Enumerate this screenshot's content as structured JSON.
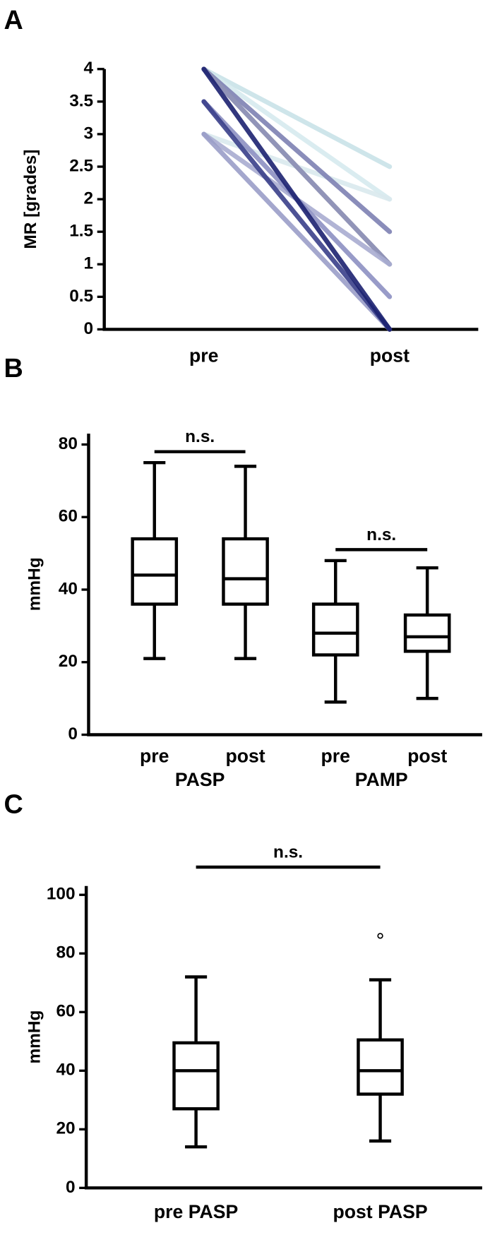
{
  "chart_data": [
    {
      "type": "line",
      "label": "A",
      "ylabel": "MR [grades]",
      "categories": [
        "pre",
        "post"
      ],
      "ylim": [
        0,
        4
      ],
      "yticks": [
        0,
        0.5,
        1,
        1.5,
        2,
        2.5,
        3,
        3.5,
        4
      ],
      "series": [
        {
          "color": "#c9e2e8",
          "values": [
            4,
            2.5
          ]
        },
        {
          "color": "#d6eaee",
          "values": [
            4,
            2
          ]
        },
        {
          "color": "#d9e9ed",
          "values": [
            3,
            2
          ]
        },
        {
          "color": "#7d81b3",
          "values": [
            4,
            1.5
          ]
        },
        {
          "color": "#9a9a9a",
          "values": [
            4,
            1
          ]
        },
        {
          "color": "#8f92ba",
          "values": [
            4,
            1
          ]
        },
        {
          "color": "#a9acd0",
          "values": [
            3,
            1
          ]
        },
        {
          "color": "#8d90c2",
          "values": [
            3.5,
            0.5
          ]
        },
        {
          "color": "#9a9dc8",
          "values": [
            3,
            0
          ]
        },
        {
          "color": "#3a3f8a",
          "values": [
            3.5,
            0
          ]
        },
        {
          "color": "#1c2170",
          "values": [
            4,
            0
          ]
        }
      ]
    },
    {
      "type": "box",
      "label": "B",
      "ylabel": "mmHg",
      "categories": [
        "pre",
        "post",
        "pre",
        "post"
      ],
      "groups": [
        "PASP",
        "PAMP"
      ],
      "ylim": [
        0,
        83
      ],
      "yticks": [
        0,
        20,
        40,
        60,
        80
      ],
      "annotations": [
        "n.s.",
        "n.s."
      ],
      "boxes": [
        {
          "min": 21,
          "q1": 36,
          "median": 44,
          "q3": 54,
          "max": 75
        },
        {
          "min": 21,
          "q1": 36,
          "median": 43,
          "q3": 54,
          "max": 74
        },
        {
          "min": 9,
          "q1": 22,
          "median": 28,
          "q3": 36,
          "max": 48
        },
        {
          "min": 10,
          "q1": 23,
          "median": 27,
          "q3": 33,
          "max": 46
        }
      ]
    },
    {
      "type": "box",
      "label": "C",
      "ylabel": "mmHg",
      "categories": [
        "pre PASP",
        "post PASP"
      ],
      "ylim": [
        0,
        103
      ],
      "yticks": [
        0,
        20,
        40,
        60,
        80,
        100
      ],
      "annotations": [
        "n.s."
      ],
      "boxes": [
        {
          "min": 14,
          "q1": 27,
          "median": 40,
          "q3": 49.5,
          "max": 72
        },
        {
          "min": 16,
          "q1": 32,
          "median": 40,
          "q3": 50.5,
          "max": 71,
          "outliers": [
            86
          ]
        }
      ]
    }
  ]
}
